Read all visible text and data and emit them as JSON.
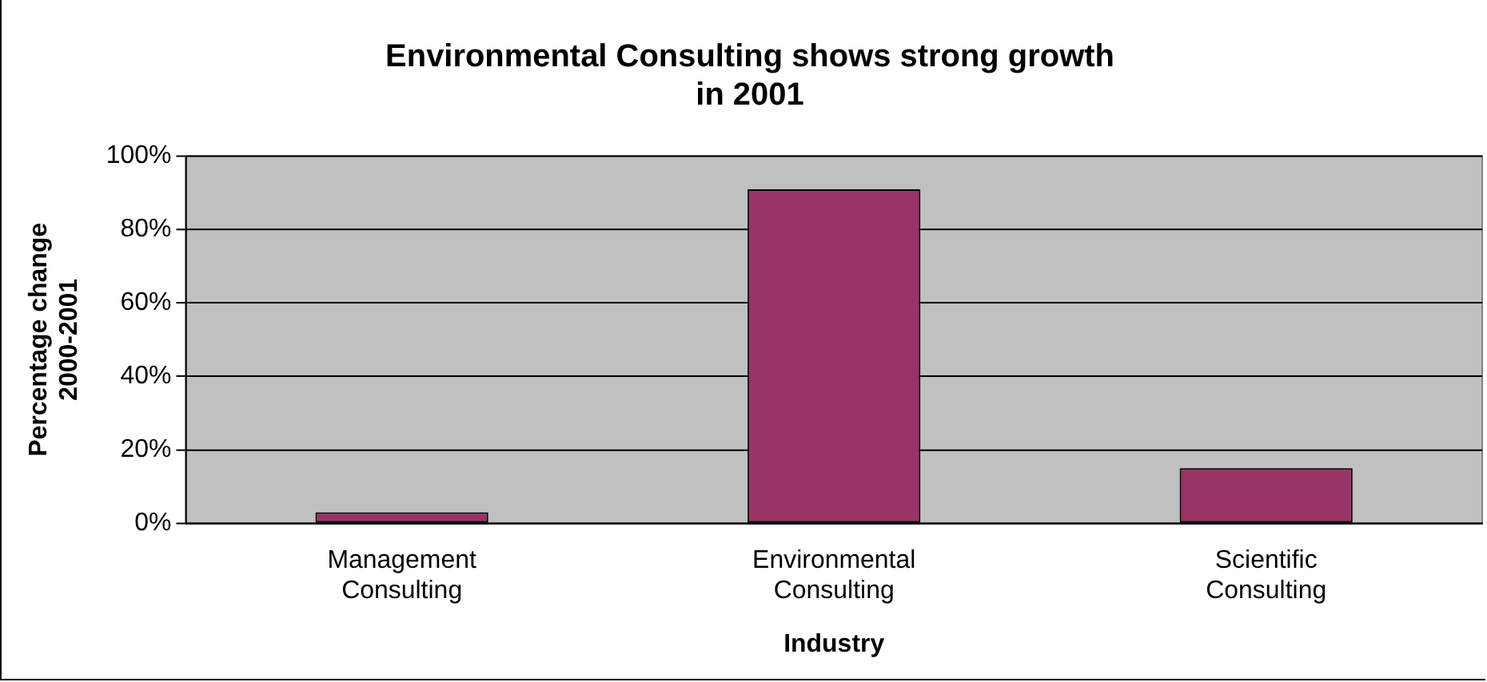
{
  "chart_data": {
    "type": "bar",
    "title": "Environmental Consulting shows strong growth in 2001",
    "xlabel": "Industry",
    "ylabel": "Percentage change 2000-2001",
    "categories": [
      "Management Consulting",
      "Environmental Consulting",
      "Scientific Consulting"
    ],
    "values": [
      3,
      91,
      15
    ],
    "color": "#993366",
    "ylim": [
      0,
      100
    ],
    "yticks": [
      {
        "value": 0,
        "label": "0%"
      },
      {
        "value": 20,
        "label": "20%"
      },
      {
        "value": 40,
        "label": "40%"
      },
      {
        "value": 60,
        "label": "60%"
      },
      {
        "value": 80,
        "label": "80%"
      },
      {
        "value": 100,
        "label": "100%"
      }
    ],
    "grid": "y",
    "legend": false
  }
}
